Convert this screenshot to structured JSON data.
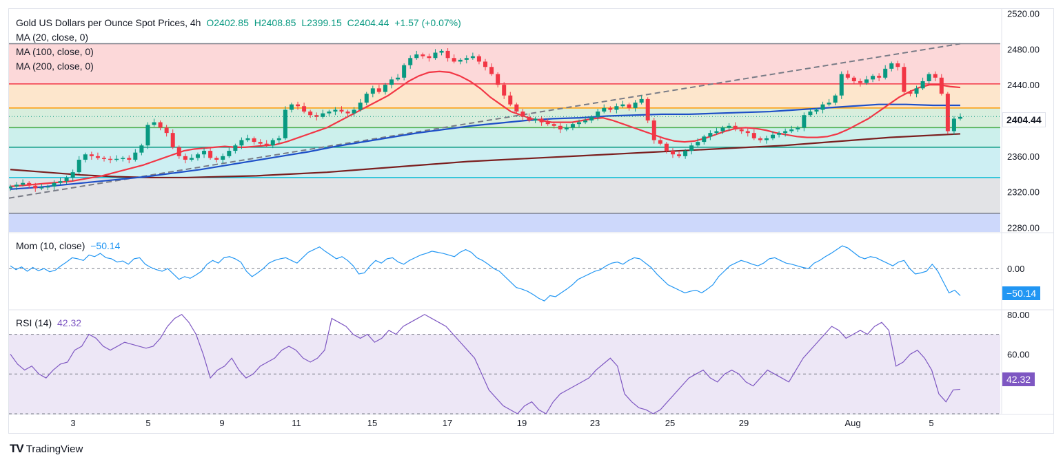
{
  "header": {
    "title": "Gold US Dollars per Ounce Spot Prices, 4h",
    "open": "O2402.85",
    "high": "H2408.85",
    "low": "L2399.15",
    "close": "C2404.44",
    "change": "+1.57 (+0.07%)"
  },
  "ma_legend": [
    "MA (20, close, 0)",
    "MA (100, close, 0)",
    "MA (200, close, 0)"
  ],
  "last_price": "2404.44",
  "mom": {
    "label": "Mom (10, close)",
    "value": "−50.14",
    "badge": "−50.14"
  },
  "rsi": {
    "label": "RSI (14)",
    "value": "42.32",
    "badge": "42.32"
  },
  "brand": "TradingView",
  "colors": {
    "up": "#089981",
    "down": "#f23645",
    "ma20": "#f23645",
    "ma100": "#1e4fc7",
    "ma200": "#7b1f1f",
    "mom": "#2196f3",
    "rsi": "#7e57c2"
  },
  "chart_data": [
    {
      "type": "candlestick",
      "title": "Gold US Dollars per Ounce Spot Prices, 4h",
      "ylim": [
        2275,
        2525
      ],
      "y_ticks": [
        "2520.00",
        "2480.00",
        "2440.00",
        "2400.00",
        "2360.00",
        "2320.00",
        "2280.00"
      ],
      "x_ticks": [
        "3",
        "5",
        "9",
        "11",
        "15",
        "17",
        "19",
        "23",
        "25",
        "29",
        "Aug",
        "5"
      ],
      "fib_levels": [
        2486,
        2441,
        2414,
        2392,
        2370,
        2336,
        2296
      ],
      "trendline": [
        [
          0,
          2313
        ],
        [
          1380,
          2486
        ]
      ],
      "close_series": [
        2326,
        2328,
        2330,
        2327,
        2324,
        2325,
        2326,
        2330,
        2332,
        2336,
        2342,
        2356,
        2362,
        2360,
        2358,
        2357,
        2356,
        2357,
        2358,
        2356,
        2364,
        2372,
        2395,
        2398,
        2392,
        2386,
        2370,
        2360,
        2356,
        2358,
        2362,
        2366,
        2358,
        2356,
        2360,
        2366,
        2372,
        2378,
        2380,
        2376,
        2374,
        2372,
        2378,
        2380,
        2412,
        2418,
        2416,
        2410,
        2406,
        2404,
        2408,
        2410,
        2412,
        2410,
        2408,
        2412,
        2420,
        2430,
        2436,
        2432,
        2440,
        2446,
        2448,
        2462,
        2470,
        2474,
        2472,
        2470,
        2476,
        2478,
        2470,
        2466,
        2468,
        2470,
        2472,
        2466,
        2460,
        2452,
        2440,
        2428,
        2418,
        2410,
        2404,
        2400,
        2402,
        2398,
        2396,
        2394,
        2390,
        2392,
        2396,
        2398,
        2400,
        2404,
        2410,
        2414,
        2412,
        2416,
        2418,
        2414,
        2420,
        2424,
        2400,
        2378,
        2374,
        2366,
        2362,
        2360,
        2366,
        2372,
        2376,
        2382,
        2386,
        2388,
        2392,
        2394,
        2390,
        2388,
        2386,
        2380,
        2378,
        2380,
        2384,
        2386,
        2388,
        2390,
        2392,
        2406,
        2410,
        2412,
        2418,
        2420,
        2428,
        2452,
        2448,
        2444,
        2442,
        2446,
        2450,
        2448,
        2458,
        2464,
        2460,
        2432,
        2430,
        2436,
        2444,
        2452,
        2448,
        2430,
        2388,
        2402,
        2404
      ],
      "ma20": [
        2326,
        2327,
        2328,
        2329,
        2330,
        2331,
        2332,
        2334,
        2336,
        2338,
        2341,
        2344,
        2347,
        2350,
        2354,
        2358,
        2362,
        2366,
        2368,
        2369,
        2370,
        2371,
        2370,
        2370,
        2371,
        2372,
        2373,
        2376,
        2380,
        2384,
        2388,
        2392,
        2398,
        2404,
        2410,
        2416,
        2422,
        2428,
        2436,
        2444,
        2450,
        2454,
        2455,
        2454,
        2450,
        2444,
        2436,
        2426,
        2418,
        2410,
        2406,
        2402,
        2400,
        2398,
        2398,
        2398,
        2400,
        2402,
        2403,
        2400,
        2396,
        2392,
        2388,
        2384,
        2380,
        2377,
        2376,
        2377,
        2380,
        2384,
        2388,
        2391,
        2392,
        2391,
        2389,
        2386,
        2384,
        2382,
        2381,
        2381,
        2382,
        2385,
        2390,
        2396,
        2402,
        2410,
        2418,
        2426,
        2432,
        2437,
        2440,
        2440,
        2438,
        2437
      ],
      "ma100": [
        2323,
        2325,
        2328,
        2331,
        2334,
        2337,
        2341,
        2345,
        2350,
        2355,
        2360,
        2365,
        2371,
        2376,
        2381,
        2386,
        2390,
        2394,
        2397,
        2400,
        2402,
        2403,
        2405,
        2406,
        2407,
        2407,
        2408,
        2409,
        2410,
        2412,
        2414,
        2416,
        2418,
        2418,
        2417,
        2417
      ],
      "ma200": [
        2345,
        2342,
        2339,
        2337,
        2336,
        2336,
        2337,
        2338,
        2340,
        2342,
        2345,
        2348,
        2351,
        2354,
        2356,
        2358,
        2360,
        2362,
        2364,
        2366,
        2368,
        2370,
        2372,
        2375,
        2378,
        2381,
        2383,
        2385
      ]
    },
    {
      "type": "line",
      "title": "Mom (10, close)",
      "ylim": [
        -75,
        65
      ],
      "y_ticks": [
        "0.00"
      ],
      "series": [
        {
          "name": "Mom (10, close)",
          "values": [
            5,
            -2,
            3,
            -5,
            2,
            -4,
            0,
            -6,
            -3,
            5,
            12,
            20,
            18,
            15,
            25,
            22,
            28,
            20,
            18,
            12,
            14,
            8,
            18,
            20,
            8,
            2,
            -2,
            -5,
            0,
            -10,
            -20,
            -15,
            -18,
            -12,
            -5,
            8,
            15,
            10,
            20,
            22,
            18,
            12,
            -5,
            -15,
            -8,
            0,
            10,
            15,
            18,
            20,
            15,
            10,
            20,
            30,
            35,
            40,
            32,
            25,
            18,
            22,
            15,
            5,
            -10,
            -8,
            5,
            15,
            10,
            18,
            20,
            12,
            8,
            15,
            20,
            25,
            28,
            32,
            30,
            28,
            25,
            22,
            30,
            35,
            30,
            20,
            15,
            8,
            0,
            -5,
            -15,
            -25,
            -35,
            -38,
            -42,
            -48,
            -55,
            -60,
            -50,
            -52,
            -45,
            -38,
            -30,
            -20,
            -15,
            -10,
            -5,
            -2,
            5,
            10,
            12,
            8,
            15,
            20,
            18,
            10,
            2,
            -10,
            -20,
            -30,
            -35,
            -40,
            -45,
            -42,
            -40,
            -45,
            -38,
            -30,
            -15,
            -5,
            5,
            10,
            15,
            12,
            8,
            5,
            10,
            18,
            20,
            15,
            10,
            8,
            5,
            2,
            0,
            10,
            15,
            22,
            28,
            35,
            42,
            38,
            30,
            22,
            18,
            22,
            20,
            15,
            10,
            5,
            12,
            15,
            0,
            -10,
            -8,
            -5,
            8,
            -5,
            -25,
            -45,
            -40,
            -50.14
          ]
        }
      ]
    },
    {
      "type": "line",
      "title": "RSI (14)",
      "ylim": [
        30,
        82
      ],
      "y_ticks": [
        "80.00",
        "60.00"
      ],
      "bands": [
        70,
        50,
        30
      ],
      "series": [
        {
          "name": "RSI (14)",
          "values": [
            60,
            55,
            52,
            54,
            50,
            48,
            52,
            55,
            56,
            62,
            64,
            70,
            68,
            64,
            62,
            64,
            66,
            65,
            64,
            63,
            64,
            68,
            74,
            78,
            80,
            76,
            70,
            60,
            48,
            52,
            54,
            58,
            52,
            48,
            50,
            54,
            56,
            58,
            62,
            64,
            62,
            58,
            56,
            58,
            62,
            78,
            76,
            74,
            70,
            68,
            70,
            66,
            68,
            72,
            70,
            74,
            76,
            78,
            80,
            78,
            76,
            74,
            70,
            66,
            62,
            58,
            50,
            42,
            38,
            34,
            32,
            30,
            34,
            36,
            32,
            30,
            36,
            40,
            42,
            44,
            46,
            48,
            52,
            55,
            58,
            54,
            40,
            36,
            33,
            32,
            30,
            32,
            36,
            40,
            44,
            48,
            50,
            52,
            48,
            46,
            50,
            52,
            50,
            46,
            44,
            48,
            52,
            50,
            48,
            46,
            52,
            58,
            62,
            66,
            70,
            74,
            72,
            68,
            70,
            72,
            70,
            74,
            76,
            72,
            54,
            56,
            60,
            62,
            58,
            52,
            40,
            36,
            42,
            42.32
          ]
        }
      ]
    }
  ]
}
